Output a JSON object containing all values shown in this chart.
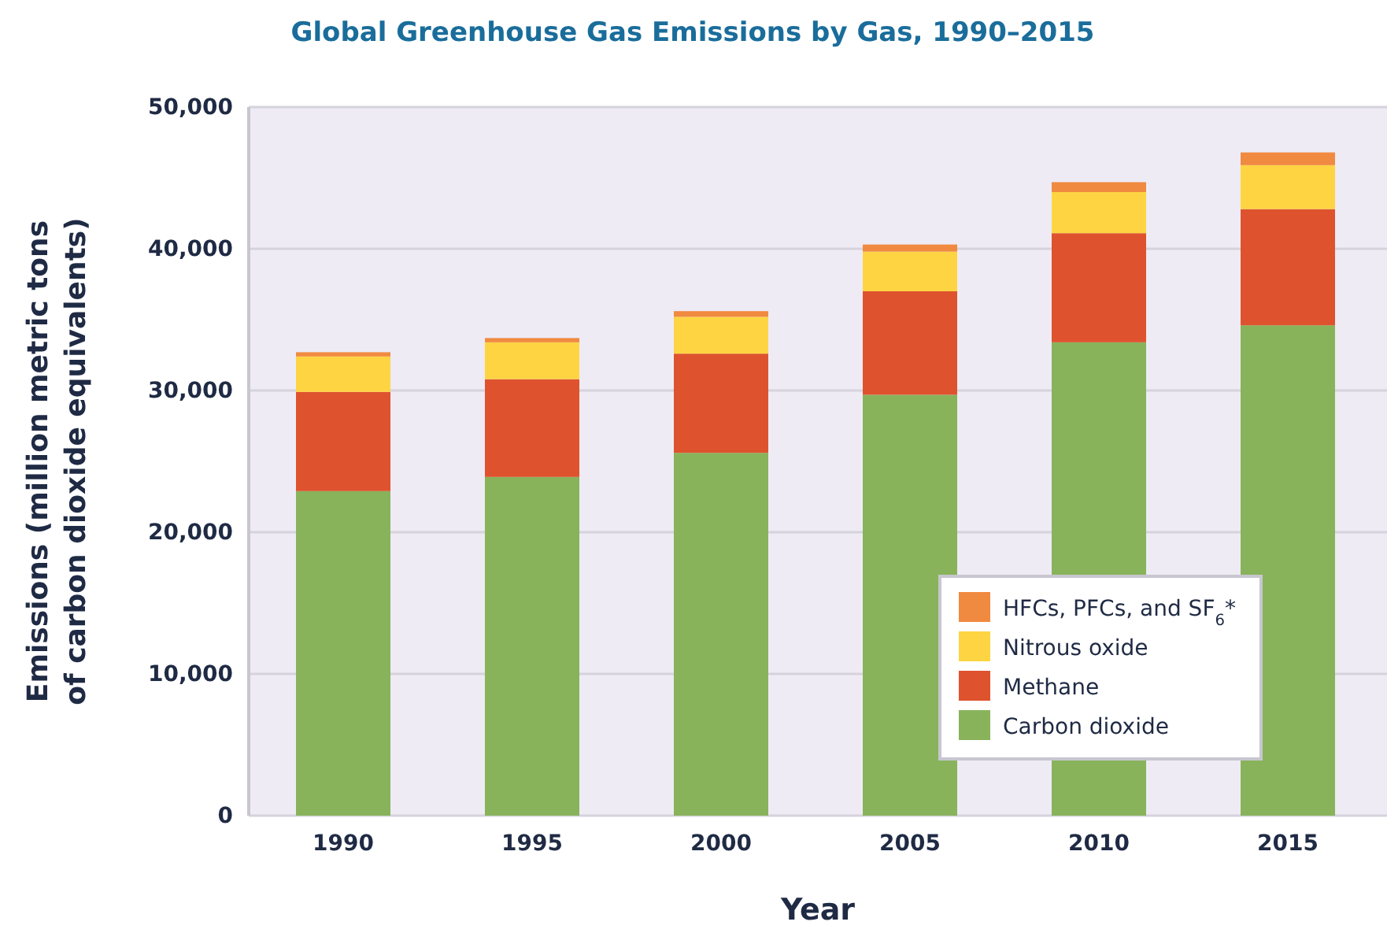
{
  "chart_data": {
    "type": "bar",
    "stacked": true,
    "title": "Global Greenhouse Gas Emissions by Gas, 1990–2015",
    "xlabel": "Year",
    "ylabel": "Emissions (million metric tons\nof carbon dioxide equivalents)",
    "categories": [
      "1990",
      "1995",
      "2000",
      "2005",
      "2010",
      "2015"
    ],
    "series": [
      {
        "name": "Carbon dioxide",
        "color": "#88b35b",
        "values": [
          22900,
          23900,
          25600,
          29700,
          33400,
          34600
        ]
      },
      {
        "name": "Methane",
        "color": "#de532e",
        "values": [
          7000,
          6900,
          7000,
          7300,
          7700,
          8200
        ]
      },
      {
        "name": "Nitrous oxide",
        "color": "#fed443",
        "values": [
          2500,
          2600,
          2600,
          2800,
          2900,
          3100
        ]
      },
      {
        "name": "HFCs, PFCs, and SF$_{6}$*",
        "color": "#f08a40",
        "values": [
          300,
          300,
          400,
          500,
          700,
          900
        ]
      }
    ],
    "ylim": [
      0,
      50000
    ],
    "yticks": [
      0,
      {
        "value": 10000,
        "label": "10,000"
      },
      {
        "value": 20000,
        "label": "20,000"
      },
      {
        "value": 30000,
        "label": "30,000"
      },
      {
        "value": 40000,
        "label": "40,000"
      },
      {
        "value": 50000,
        "label": "50,000"
      }
    ],
    "grid": "y",
    "legend": "bottom right"
  }
}
